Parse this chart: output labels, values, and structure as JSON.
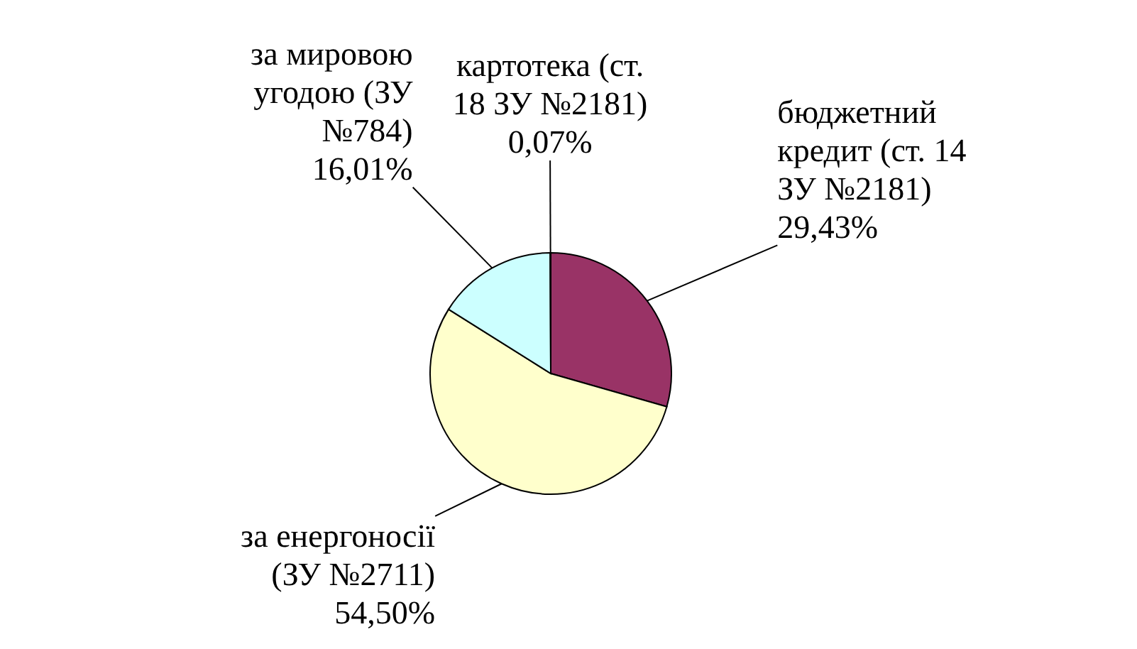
{
  "chart_data": {
    "type": "pie",
    "categories": [
      "бюджетний кредит (ст. 14 ЗУ №2181)",
      "за енергоносії (ЗУ №2711)",
      "за мировою угодою (ЗУ №784)",
      "картотека (ст. 18 ЗУ №2181)"
    ],
    "values": [
      29.43,
      54.5,
      16.01,
      0.07
    ],
    "colors": [
      "#993366",
      "#ffffcc",
      "#ccffff",
      "#ffffff"
    ],
    "value_labels": [
      "29,43%",
      "54,50%",
      "16,01%",
      "0,07%"
    ],
    "legend": false
  }
}
